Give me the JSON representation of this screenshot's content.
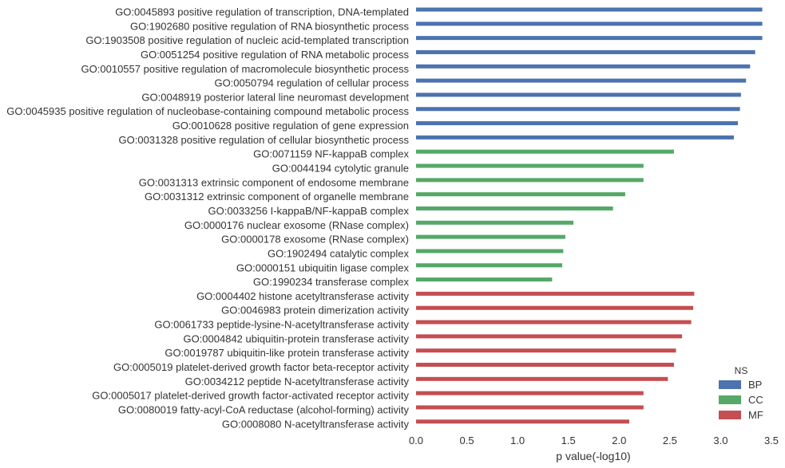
{
  "chart_data": {
    "type": "bar",
    "orientation": "horizontal",
    "xlabel": "p value(-log10)",
    "ylabel": "",
    "xlim": [
      0,
      3.5
    ],
    "xticks": [
      "0.0",
      "0.5",
      "1.0",
      "1.5",
      "2.0",
      "2.5",
      "3.0",
      "3.5"
    ],
    "grid": false,
    "legend": {
      "title": "NS",
      "placement": "bottom-right",
      "entries": [
        {
          "name": "BP",
          "color": "#4c72b0"
        },
        {
          "name": "CC",
          "color": "#55a868"
        },
        {
          "name": "MF",
          "color": "#c44e52"
        }
      ]
    },
    "categories": [
      {
        "label": "GO:0045893 positive regulation of transcription, DNA-templated",
        "value": 3.41,
        "ns": "BP"
      },
      {
        "label": "GO:1902680 positive regulation of RNA biosynthetic process",
        "value": 3.41,
        "ns": "BP"
      },
      {
        "label": "GO:1903508 positive regulation of nucleic acid-templated transcription",
        "value": 3.41,
        "ns": "BP"
      },
      {
        "label": "GO:0051254 positive regulation of RNA metabolic process",
        "value": 3.34,
        "ns": "BP"
      },
      {
        "label": "GO:0010557 positive regulation of macromolecule biosynthetic process",
        "value": 3.29,
        "ns": "BP"
      },
      {
        "label": "GO:0050794 regulation of cellular process",
        "value": 3.25,
        "ns": "BP"
      },
      {
        "label": "GO:0048919 posterior lateral line neuromast development",
        "value": 3.2,
        "ns": "BP"
      },
      {
        "label": "GO:0045935 positive regulation of nucleobase-containing compound metabolic process",
        "value": 3.19,
        "ns": "BP"
      },
      {
        "label": "GO:0010628 positive regulation of gene expression",
        "value": 3.17,
        "ns": "BP"
      },
      {
        "label": "GO:0031328 positive regulation of cellular biosynthetic process",
        "value": 3.13,
        "ns": "BP"
      },
      {
        "label": "GO:0071159 NF-kappaB complex",
        "value": 2.54,
        "ns": "CC"
      },
      {
        "label": "GO:0044194 cytolytic granule",
        "value": 2.24,
        "ns": "CC"
      },
      {
        "label": "GO:0031313 extrinsic component of endosome membrane",
        "value": 2.24,
        "ns": "CC"
      },
      {
        "label": "GO:0031312 extrinsic component of organelle membrane",
        "value": 2.06,
        "ns": "CC"
      },
      {
        "label": "GO:0033256 I-kappaB/NF-kappaB complex",
        "value": 1.94,
        "ns": "CC"
      },
      {
        "label": "GO:0000176 nuclear exosome (RNase complex)",
        "value": 1.55,
        "ns": "CC"
      },
      {
        "label": "GO:0000178 exosome (RNase complex)",
        "value": 1.47,
        "ns": "CC"
      },
      {
        "label": "GO:1902494 catalytic complex",
        "value": 1.45,
        "ns": "CC"
      },
      {
        "label": "GO:0000151 ubiquitin ligase complex",
        "value": 1.44,
        "ns": "CC"
      },
      {
        "label": "GO:1990234 transferase complex",
        "value": 1.34,
        "ns": "CC"
      },
      {
        "label": "GO:0004402 histone acetyltransferase activity",
        "value": 2.74,
        "ns": "MF"
      },
      {
        "label": "GO:0046983 protein dimerization activity",
        "value": 2.73,
        "ns": "MF"
      },
      {
        "label": "GO:0061733 peptide-lysine-N-acetyltransferase activity",
        "value": 2.71,
        "ns": "MF"
      },
      {
        "label": "GO:0004842 ubiquitin-protein transferase activity",
        "value": 2.62,
        "ns": "MF"
      },
      {
        "label": "GO:0019787 ubiquitin-like protein transferase activity",
        "value": 2.56,
        "ns": "MF"
      },
      {
        "label": "GO:0005019 platelet-derived growth factor beta-receptor activity",
        "value": 2.54,
        "ns": "MF"
      },
      {
        "label": "GO:0034212 peptide N-acetyltransferase activity",
        "value": 2.48,
        "ns": "MF"
      },
      {
        "label": "GO:0005017 platelet-derived growth factor-activated receptor activity",
        "value": 2.24,
        "ns": "MF"
      },
      {
        "label": "GO:0080019 fatty-acyl-CoA reductase (alcohol-forming) activity",
        "value": 2.24,
        "ns": "MF"
      },
      {
        "label": "GO:0008080 N-acetyltransferase activity",
        "value": 2.1,
        "ns": "MF"
      }
    ]
  }
}
